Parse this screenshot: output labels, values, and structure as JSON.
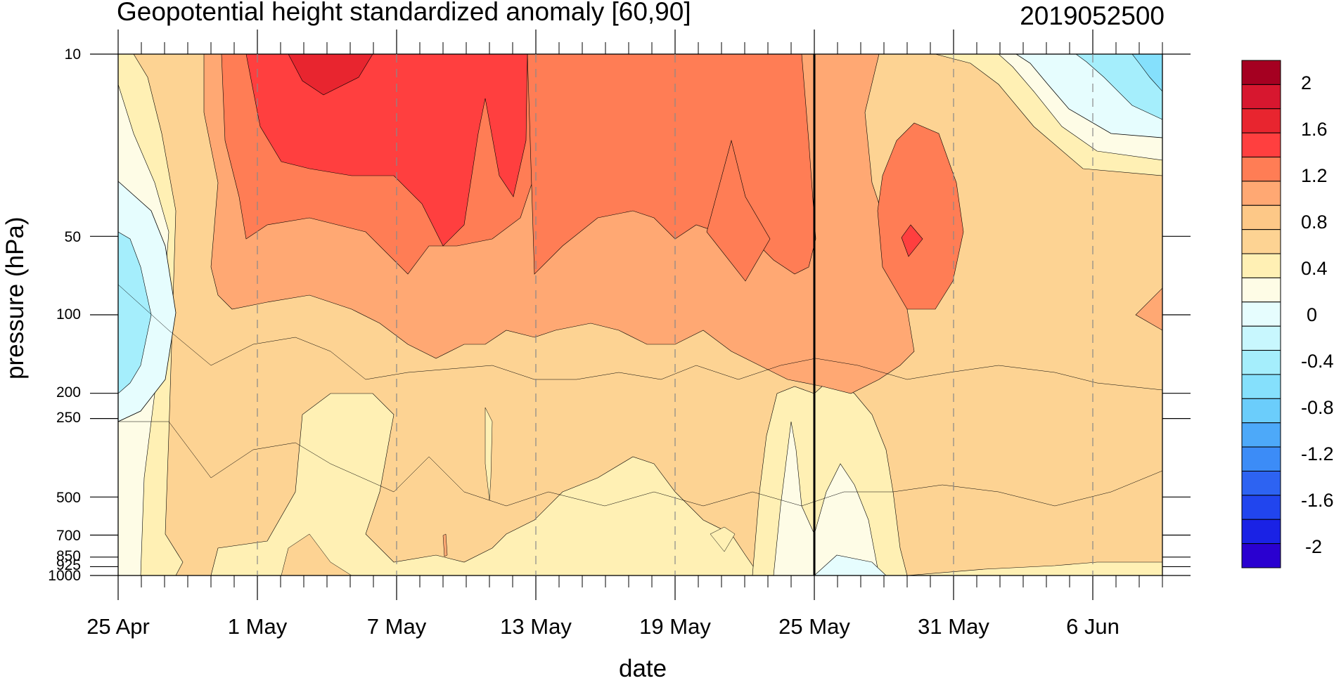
{
  "chart_data": {
    "type": "contour",
    "title": "Geopotential height standardized anomaly [60,90]",
    "title_right": "2019052500",
    "xlabel": "date",
    "ylabel": "pressure (hPa)",
    "x_ticks": [
      "25 Apr",
      "1 May",
      "7 May",
      "13 May",
      "19 May",
      "25 May",
      "31 May",
      "6 Jun"
    ],
    "x_range": [
      "25 Apr",
      "10 Jun"
    ],
    "y_ticks": [
      "10",
      "50",
      "100",
      "200",
      "250",
      "500",
      "700",
      "850",
      "925",
      "1000"
    ],
    "y_scale": "log",
    "y_range": [
      1000,
      10
    ],
    "vertical_marker": "25 May",
    "colorbar": {
      "labels": [
        "2",
        "1.6",
        "1.2",
        "0.8",
        "0.4",
        "0",
        "-0.4",
        "-0.8",
        "-1.2",
        "-1.6",
        "-2"
      ],
      "colors": [
        "#a50021",
        "#d7172f",
        "#e8252f",
        "#ff3f3f",
        "#ff7d55",
        "#ffa873",
        "#fdc887",
        "#fdd393",
        "#fff0b4",
        "#fefce6",
        "#e6fdfe",
        "#c8f7fe",
        "#a5eefc",
        "#85e0fc",
        "#6bcdfb",
        "#4da9f9",
        "#3c8cf7",
        "#2d63f2",
        "#2145ee",
        "#1a22e5",
        "#2a00d0"
      ]
    },
    "fields": [
      {
        "level": "0.4 to 0.8",
        "color": "#fdd393",
        "approx_region": "most of lower troposphere (200-1000 hPa)"
      },
      {
        "level": "0.8 to 1.2",
        "color": "#ffa873",
        "approx_region": "stratosphere 10-200 hPa through May"
      },
      {
        "level": "1.2 to 1.6",
        "color": "#ff7d55",
        "approx_region": "upper stratosphere mid May; 50-100 hPa late May"
      },
      {
        "level": "1.6 to 2",
        "color": "#ff3f3f",
        "approx_region": "10-50 hPa, 1-12 May"
      },
      {
        "level": "-0.4 to 0",
        "color": "#c8f7fe",
        "approx_region": "25-27 Apr near 50-200 hPa; early Jun 10-30 hPa"
      }
    ]
  }
}
